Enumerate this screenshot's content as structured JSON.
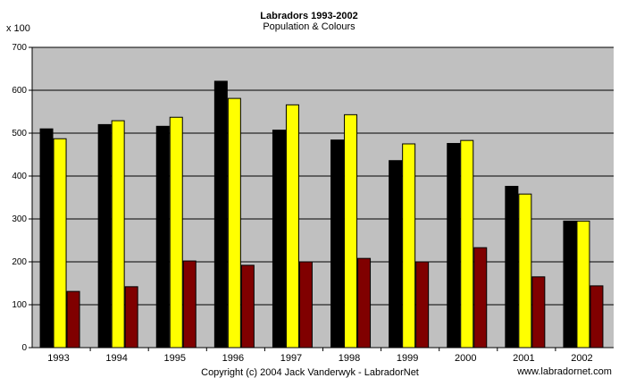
{
  "chart_data": {
    "type": "bar",
    "title": "Labradors 1993-2002",
    "subtitle": "Population & Colours",
    "ylabel": "x 100",
    "xlabel": "",
    "categories": [
      "1993",
      "1994",
      "1995",
      "1996",
      "1997",
      "1998",
      "1999",
      "2000",
      "2001",
      "2002"
    ],
    "ylim": [
      0,
      700
    ],
    "yticks": [
      0,
      100,
      200,
      300,
      400,
      500,
      600,
      700
    ],
    "grid": true,
    "legend": "none",
    "series": [
      {
        "color": "#000000",
        "values": [
          510,
          520,
          516,
          621,
          507,
          484,
          436,
          476,
          376,
          295
        ]
      },
      {
        "color": "#ffff00",
        "values": [
          487,
          529,
          537,
          581,
          566,
          543,
          475,
          483,
          358,
          295
        ]
      },
      {
        "color": "#800000",
        "values": [
          131,
          142,
          202,
          192,
          200,
          208,
          200,
          233,
          165,
          144
        ]
      }
    ],
    "plot_background": "#c0c0c0",
    "footer": "Copyright (c) 2004 Jack Vanderwyk - LabradorNet",
    "website": "www.labradornet.com"
  }
}
